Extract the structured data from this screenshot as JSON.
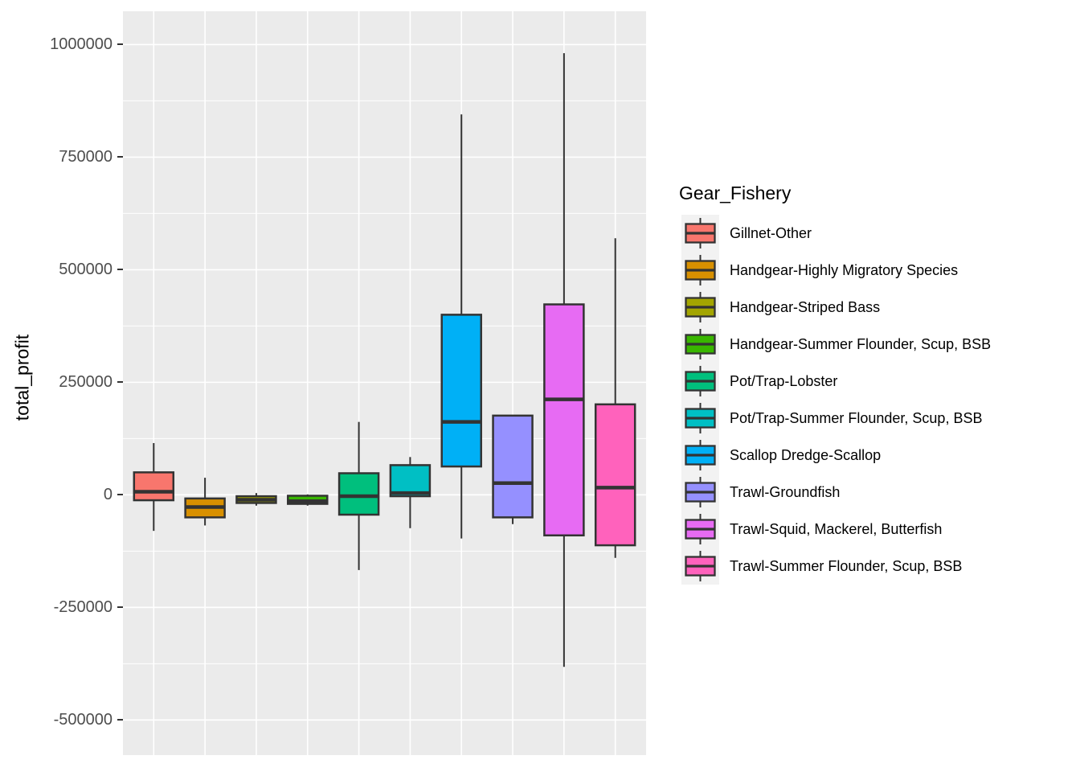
{
  "chart_data": {
    "type": "boxplot",
    "title": "",
    "xlabel": "",
    "ylabel": "total_profit",
    "legend_title": "Gear_Fishery",
    "legend_position": "right",
    "grid": true,
    "ylim": [
      -578000,
      1074000
    ],
    "y_ticks": [
      1000000,
      750000,
      500000,
      250000,
      0,
      -250000,
      -500000
    ],
    "y_tick_labels": [
      "1000000",
      "750000",
      "500000",
      "250000",
      "0",
      "-250000",
      "-500000"
    ],
    "y_minor_ticks": [
      875000,
      625000,
      375000,
      125000,
      -125000,
      -375000
    ],
    "x_tick_labels": [],
    "series": [
      {
        "name": "Gillnet-Other",
        "color": "#F8766D",
        "whisker_low": -80000,
        "q1": -12000,
        "median": 7000,
        "q3": 50000,
        "whisker_high": 115000
      },
      {
        "name": "Handgear-Highly Migratory Species",
        "color": "#D89000",
        "whisker_low": -68000,
        "q1": -50000,
        "median": -27000,
        "q3": -8000,
        "whisker_high": 38000
      },
      {
        "name": "Handgear-Striped Bass",
        "color": "#A3A500",
        "whisker_low": -24000,
        "q1": -18000,
        "median": -11000,
        "q3": -3000,
        "whisker_high": 4000
      },
      {
        "name": "Handgear-Summer Flounder, Scup, BSB",
        "color": "#39B600",
        "whisker_low": -24000,
        "q1": -20000,
        "median": -14000,
        "q3": -2000,
        "whisker_high": 1000
      },
      {
        "name": "Pot/Trap-Lobster",
        "color": "#00BF7D",
        "whisker_low": -167000,
        "q1": -44000,
        "median": -3000,
        "q3": 48000,
        "whisker_high": 162000
      },
      {
        "name": "Pot/Trap-Summer Flounder, Scup, BSB",
        "color": "#00BFC4",
        "whisker_low": -74000,
        "q1": -3000,
        "median": 4000,
        "q3": 66000,
        "whisker_high": 84000
      },
      {
        "name": "Scallop Dredge-Scallop",
        "color": "#00B0F6",
        "whisker_low": -97000,
        "q1": 63000,
        "median": 162000,
        "q3": 400000,
        "whisker_high": 845000
      },
      {
        "name": "Trawl-Groundfish",
        "color": "#9590FF",
        "whisker_low": -65000,
        "q1": -50000,
        "median": 26000,
        "q3": 176000,
        "whisker_high": 176000
      },
      {
        "name": "Trawl-Squid, Mackerel, Butterfish",
        "color": "#E76BF3",
        "whisker_low": -382000,
        "q1": -90000,
        "median": 212000,
        "q3": 423000,
        "whisker_high": 981000
      },
      {
        "name": "Trawl-Summer Flounder, Scup, BSB",
        "color": "#FF62BC",
        "whisker_low": -140000,
        "q1": -112000,
        "median": 16000,
        "q3": 201000,
        "whisker_high": 570000
      }
    ]
  },
  "style_colors": {
    "panel_background": "#EBEBEB",
    "gridline": "#FFFFFF",
    "box_border": "#333333",
    "tick_label": "#4D4D4D",
    "legend_key_background": "#F2F2F2"
  }
}
